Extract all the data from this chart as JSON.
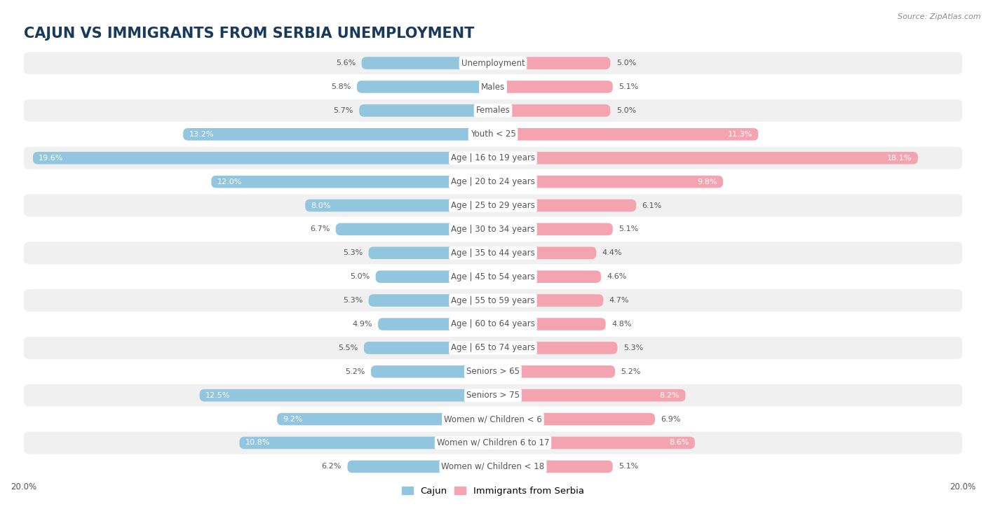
{
  "title": "CAJUN VS IMMIGRANTS FROM SERBIA UNEMPLOYMENT",
  "source": "Source: ZipAtlas.com",
  "categories": [
    "Unemployment",
    "Males",
    "Females",
    "Youth < 25",
    "Age | 16 to 19 years",
    "Age | 20 to 24 years",
    "Age | 25 to 29 years",
    "Age | 30 to 34 years",
    "Age | 35 to 44 years",
    "Age | 45 to 54 years",
    "Age | 55 to 59 years",
    "Age | 60 to 64 years",
    "Age | 65 to 74 years",
    "Seniors > 65",
    "Seniors > 75",
    "Women w/ Children < 6",
    "Women w/ Children 6 to 17",
    "Women w/ Children < 18"
  ],
  "cajun_values": [
    5.6,
    5.8,
    5.7,
    13.2,
    19.6,
    12.0,
    8.0,
    6.7,
    5.3,
    5.0,
    5.3,
    4.9,
    5.5,
    5.2,
    12.5,
    9.2,
    10.8,
    6.2
  ],
  "serbia_values": [
    5.0,
    5.1,
    5.0,
    11.3,
    18.1,
    9.8,
    6.1,
    5.1,
    4.4,
    4.6,
    4.7,
    4.8,
    5.3,
    5.2,
    8.2,
    6.9,
    8.6,
    5.1
  ],
  "cajun_color": "#92c5de",
  "serbia_color": "#f4a4b0",
  "axis_limit": 20.0,
  "bar_height": 0.52,
  "background_color": "#ffffff",
  "row_even_color": "#f0f0f0",
  "row_odd_color": "#ffffff",
  "title_fontsize": 15,
  "label_fontsize": 8.5,
  "value_fontsize": 8.0,
  "tick_fontsize": 8.5,
  "legend_labels": [
    "Cajun",
    "Immigrants from Serbia"
  ],
  "title_color": "#1a3a5c",
  "label_color": "#555555",
  "value_inside_color": "#ffffff",
  "value_outside_color": "#555555"
}
